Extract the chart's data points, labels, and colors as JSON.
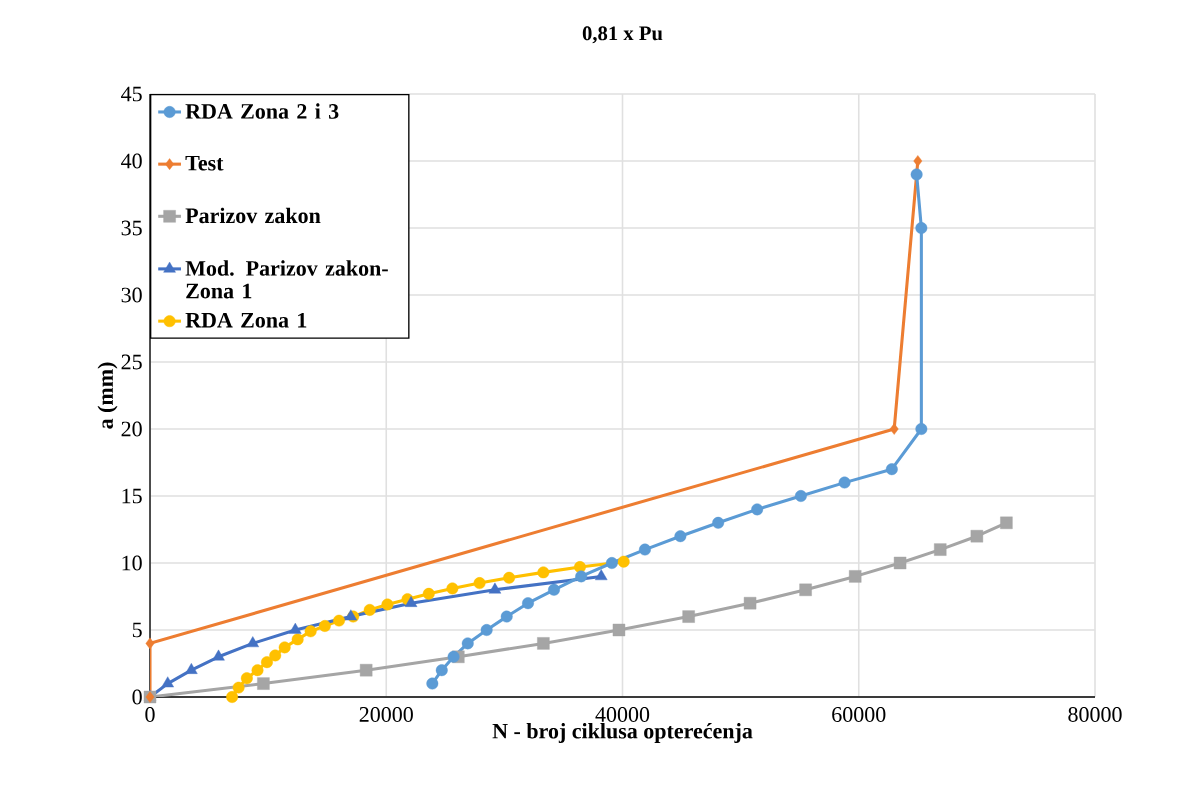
{
  "chart_data": {
    "type": "line",
    "title": "0,81 x Pu",
    "xlabel": "N - broj ciklusa opterećenja",
    "ylabel": "a (mm)",
    "xlim": [
      0,
      80000
    ],
    "xticks": [
      0,
      20000,
      40000,
      60000,
      80000
    ],
    "ylim": [
      0,
      45
    ],
    "yticks": [
      0,
      5,
      10,
      15,
      20,
      25,
      30,
      35,
      40,
      45
    ],
    "grid": true,
    "legend": "top left",
    "series": [
      {
        "name": "RDA Zona 2 i 3",
        "color": "#5b9bd5",
        "marker": "circle",
        "x": [
          23900,
          24700,
          25700,
          26900,
          28500,
          30200,
          32000,
          34200,
          36500,
          39100,
          41900,
          44900,
          48100,
          51400,
          55100,
          58800,
          62800,
          65300,
          65300,
          64900
        ],
        "values": [
          1,
          2,
          3,
          4,
          5,
          6,
          7,
          8,
          9,
          10,
          11,
          12,
          13,
          14,
          15,
          16,
          17,
          20,
          35,
          39
        ]
      },
      {
        "name": "Test",
        "color": "#ed7d31",
        "marker": "diamond",
        "x": [
          0,
          0,
          63000,
          65000
        ],
        "values": [
          0,
          4,
          20,
          40
        ]
      },
      {
        "name": "Parizov zakon",
        "color": "#a5a5a5",
        "marker": "square",
        "x": [
          0,
          9600,
          18300,
          26100,
          33300,
          39700,
          45600,
          50800,
          55500,
          59700,
          63500,
          66900,
          70000,
          72500
        ],
        "values": [
          0,
          1,
          2,
          3,
          4,
          5,
          6,
          7,
          8,
          9,
          10,
          11,
          12,
          13
        ]
      },
      {
        "name": "Mod. Parizov zakon-Zona 1",
        "color": "#4472c4",
        "marker": "triangle",
        "x": [
          0,
          1500,
          3500,
          5800,
          8700,
          12300,
          17000,
          22100,
          29200,
          38200
        ],
        "values": [
          0,
          1,
          2,
          3,
          4,
          5,
          6,
          7,
          8,
          9
        ]
      },
      {
        "name": "RDA Zona 1",
        "color": "#ffc000",
        "marker": "circle",
        "x": [
          6950,
          7500,
          8200,
          9100,
          9900,
          10600,
          11400,
          12500,
          13600,
          14800,
          16000,
          17200,
          18600,
          20100,
          21800,
          23600,
          25600,
          27900,
          30400,
          33300,
          36400,
          40100
        ],
        "values": [
          0,
          0.7,
          1.4,
          2.0,
          2.6,
          3.1,
          3.7,
          4.3,
          4.9,
          5.3,
          5.7,
          6.0,
          6.5,
          6.9,
          7.3,
          7.7,
          8.1,
          8.5,
          8.9,
          9.3,
          9.7,
          10.1
        ]
      }
    ]
  }
}
